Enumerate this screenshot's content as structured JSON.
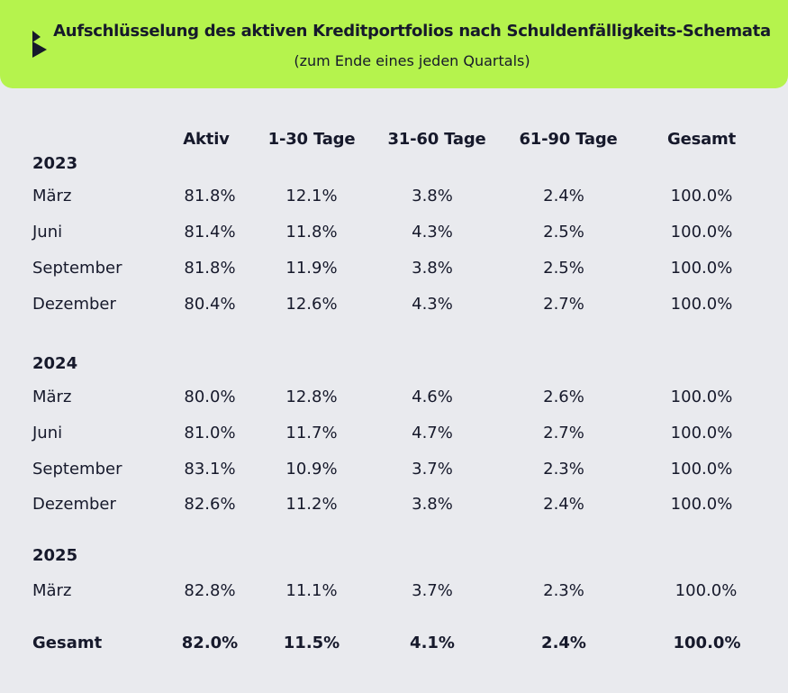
{
  "header": {
    "title": "Aufschlüsselung des aktiven Kreditportfolios nach Schuldenfälligkeits-Schemata",
    "subtitle": "(zum Ende eines jeden Quartals)",
    "accent_color": "#b5f34d"
  },
  "table": {
    "columns": [
      "Aktiv",
      "1-30 Tage",
      "31-60 Tage",
      "61-90 Tage",
      "Gesamt"
    ],
    "groups": [
      {
        "year": "2023",
        "rows": [
          {
            "label": "März",
            "values": [
              "81.8%",
              "12.1%",
              "3.8%",
              "2.4%",
              "100.0%"
            ]
          },
          {
            "label": "Juni",
            "values": [
              "81.4%",
              "11.8%",
              "4.3%",
              "2.5%",
              "100.0%"
            ]
          },
          {
            "label": "September",
            "values": [
              "81.8%",
              "11.9%",
              "3.8%",
              "2.5%",
              "100.0%"
            ]
          },
          {
            "label": "Dezember",
            "values": [
              "80.4%",
              "12.6%",
              "4.3%",
              "2.7%",
              "100.0%"
            ]
          }
        ]
      },
      {
        "year": "2024",
        "rows": [
          {
            "label": "März",
            "values": [
              "80.0%",
              "12.8%",
              "4.6%",
              "2.6%",
              "100.0%"
            ]
          },
          {
            "label": "Juni",
            "values": [
              "81.0%",
              "11.7%",
              "4.7%",
              "2.7%",
              "100.0%"
            ]
          },
          {
            "label": "September",
            "values": [
              "83.1%",
              "10.9%",
              "3.7%",
              "2.3%",
              "100.0%"
            ]
          },
          {
            "label": "Dezember",
            "values": [
              "82.6%",
              "11.2%",
              "3.8%",
              "2.4%",
              "100.0%"
            ]
          }
        ]
      },
      {
        "year": "2025",
        "rows": [
          {
            "label": "März",
            "values": [
              "82.8%",
              "11.1%",
              "3.7%",
              "2.3%",
              "100.0%"
            ]
          }
        ]
      }
    ],
    "total": {
      "label": "Gesamt",
      "values": [
        "82.0%",
        "11.5%",
        "4.1%",
        "2.4%",
        "100.0%"
      ]
    }
  }
}
